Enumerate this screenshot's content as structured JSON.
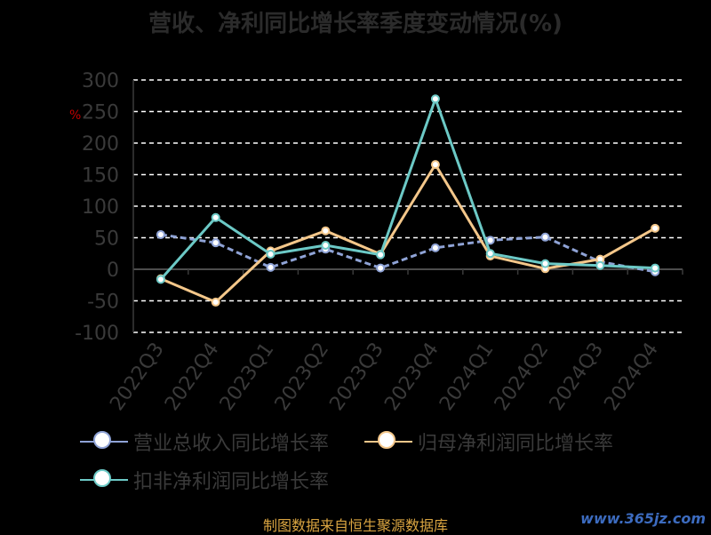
{
  "title": "营收、净利同比增长率季度变动情况(%)",
  "ylabel_mark": "%",
  "source": "制图数据来自恒生聚源数据库",
  "watermark": "www.365jz.com",
  "chart_data": {
    "type": "line",
    "categories": [
      "2022Q3",
      "2022Q4",
      "2023Q1",
      "2023Q2",
      "2023Q3",
      "2023Q4",
      "2024Q1",
      "2024Q2",
      "2024Q3",
      "2024Q4"
    ],
    "ylim": [
      -100,
      300
    ],
    "yticks": [
      300,
      250,
      200,
      150,
      100,
      50,
      0,
      -50,
      -100
    ],
    "grid": true,
    "legend_position": "bottom",
    "series": [
      {
        "name": "营业总收入同比增长率",
        "color": "#8fa3d6",
        "dashed": true,
        "values": [
          55,
          42,
          3,
          32,
          2,
          34,
          46,
          51,
          12,
          -4
        ]
      },
      {
        "name": "归母净利润同比增长率",
        "color": "#f4c78a",
        "dashed": false,
        "values": [
          -15,
          -52,
          29,
          61,
          24,
          166,
          21,
          1,
          16,
          65
        ]
      },
      {
        "name": "扣非净利润同比增长率",
        "color": "#6cc9c6",
        "dashed": false,
        "values": [
          -16,
          82,
          24,
          38,
          23,
          270,
          25,
          9,
          6,
          2
        ]
      }
    ]
  }
}
